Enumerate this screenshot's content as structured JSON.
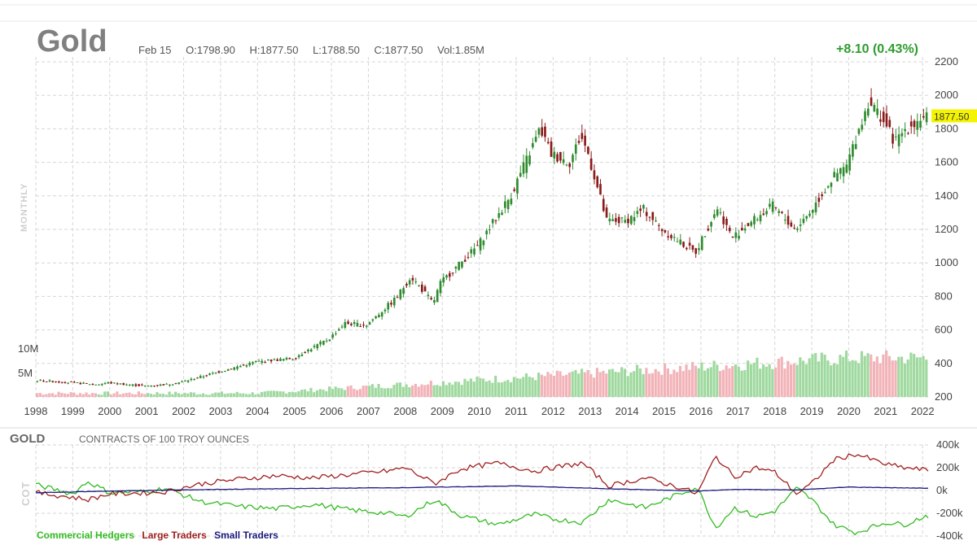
{
  "header": {
    "title": "Gold",
    "date": "Feb 15",
    "open": "O:1798.90",
    "high": "H:1877.50",
    "low": "L:1788.50",
    "close": "C:1877.50",
    "volume": "Vol:1.85M",
    "change": "+8.10 (0.43%)",
    "change_color": "#2e9c2e",
    "last_price_tag": "1877.50",
    "timeframe": "MONTHLY"
  },
  "chart_data": [
    {
      "type": "candlestick",
      "title": "Gold",
      "x_tick_labels": [
        "1998",
        "1999",
        "2000",
        "2001",
        "2002",
        "2003",
        "2004",
        "2005",
        "2006",
        "2007",
        "2008",
        "2009",
        "2010",
        "2011",
        "2012",
        "2013",
        "2014",
        "2015",
        "2016",
        "2017",
        "2018",
        "2019",
        "2020",
        "2021",
        "2022"
      ],
      "y_tick_labels": [
        "200",
        "400",
        "600",
        "800",
        "1000",
        "1200",
        "1400",
        "1600",
        "1800",
        "2000",
        "2200"
      ],
      "ylim": [
        200,
        2200
      ],
      "volume_tick_labels": [
        "5M",
        "10M"
      ],
      "grid": true,
      "up_color": "#2e8b2e",
      "down_color": "#8b1a1a",
      "volume_up_color": "#9fd99f",
      "volume_down_color": "#f2b3b8",
      "close_anchors": [
        {
          "x": 1998.0,
          "y": 300
        },
        {
          "x": 1999.0,
          "y": 285
        },
        {
          "x": 1999.7,
          "y": 275
        },
        {
          "x": 2000.0,
          "y": 285
        },
        {
          "x": 2001.0,
          "y": 265
        },
        {
          "x": 2001.6,
          "y": 275
        },
        {
          "x": 2002.0,
          "y": 290
        },
        {
          "x": 2003.0,
          "y": 350
        },
        {
          "x": 2004.0,
          "y": 410
        },
        {
          "x": 2005.0,
          "y": 430
        },
        {
          "x": 2006.0,
          "y": 550
        },
        {
          "x": 2006.4,
          "y": 640
        },
        {
          "x": 2007.0,
          "y": 630
        },
        {
          "x": 2007.8,
          "y": 790
        },
        {
          "x": 2008.2,
          "y": 920
        },
        {
          "x": 2008.8,
          "y": 760
        },
        {
          "x": 2009.0,
          "y": 880
        },
        {
          "x": 2010.0,
          "y": 1100
        },
        {
          "x": 2010.9,
          "y": 1400
        },
        {
          "x": 2011.7,
          "y": 1800
        },
        {
          "x": 2012.0,
          "y": 1650
        },
        {
          "x": 2012.5,
          "y": 1600
        },
        {
          "x": 2012.8,
          "y": 1760
        },
        {
          "x": 2013.0,
          "y": 1650
        },
        {
          "x": 2013.5,
          "y": 1250
        },
        {
          "x": 2014.0,
          "y": 1250
        },
        {
          "x": 2014.5,
          "y": 1320
        },
        {
          "x": 2015.0,
          "y": 1200
        },
        {
          "x": 2015.9,
          "y": 1060
        },
        {
          "x": 2016.5,
          "y": 1330
        },
        {
          "x": 2016.9,
          "y": 1150
        },
        {
          "x": 2017.5,
          "y": 1260
        },
        {
          "x": 2018.0,
          "y": 1340
        },
        {
          "x": 2018.6,
          "y": 1200
        },
        {
          "x": 2019.0,
          "y": 1300
        },
        {
          "x": 2019.6,
          "y": 1500
        },
        {
          "x": 2020.0,
          "y": 1580
        },
        {
          "x": 2020.6,
          "y": 1970
        },
        {
          "x": 2021.0,
          "y": 1850
        },
        {
          "x": 2021.3,
          "y": 1720
        },
        {
          "x": 2021.6,
          "y": 1800
        },
        {
          "x": 2022.1,
          "y": 1877.5
        }
      ]
    },
    {
      "type": "line",
      "title": "GOLD",
      "subtitle": "CONTRACTS OF 100 TROY OUNCES",
      "side_label": "COT",
      "y_tick_labels": [
        "400k",
        "200k",
        "0k",
        "-200k",
        "-400k"
      ],
      "ylim": [
        -400000,
        400000
      ],
      "grid": true,
      "series": [
        {
          "name": "Commercial Hedgers",
          "color": "#33bb22",
          "points": [
            {
              "x": 1998.0,
              "y": 50000
            },
            {
              "x": 1999.0,
              "y": -30000
            },
            {
              "x": 1999.4,
              "y": 80000
            },
            {
              "x": 2000.0,
              "y": -20000
            },
            {
              "x": 2001.0,
              "y": -10000
            },
            {
              "x": 2001.5,
              "y": 20000
            },
            {
              "x": 2002.5,
              "y": -100000
            },
            {
              "x": 2003.5,
              "y": -140000
            },
            {
              "x": 2004.5,
              "y": -160000
            },
            {
              "x": 2005.5,
              "y": -120000
            },
            {
              "x": 2006.5,
              "y": -170000
            },
            {
              "x": 2007.5,
              "y": -200000
            },
            {
              "x": 2008.0,
              "y": -230000
            },
            {
              "x": 2008.8,
              "y": -80000
            },
            {
              "x": 2009.5,
              "y": -220000
            },
            {
              "x": 2010.5,
              "y": -300000
            },
            {
              "x": 2011.5,
              "y": -210000
            },
            {
              "x": 2012.0,
              "y": -250000
            },
            {
              "x": 2012.8,
              "y": -280000
            },
            {
              "x": 2013.5,
              "y": -80000
            },
            {
              "x": 2014.5,
              "y": -150000
            },
            {
              "x": 2015.5,
              "y": -20000
            },
            {
              "x": 2015.9,
              "y": 30000
            },
            {
              "x": 2016.4,
              "y": -330000
            },
            {
              "x": 2016.9,
              "y": -150000
            },
            {
              "x": 2017.5,
              "y": -230000
            },
            {
              "x": 2018.0,
              "y": -180000
            },
            {
              "x": 2018.6,
              "y": 20000
            },
            {
              "x": 2019.0,
              "y": -80000
            },
            {
              "x": 2019.6,
              "y": -300000
            },
            {
              "x": 2020.2,
              "y": -370000
            },
            {
              "x": 2021.0,
              "y": -280000
            },
            {
              "x": 2021.5,
              "y": -300000
            },
            {
              "x": 2022.1,
              "y": -220000
            }
          ]
        },
        {
          "name": "Large Traders",
          "color": "#a02020",
          "points": [
            {
              "x": 1998.0,
              "y": -20000
            },
            {
              "x": 1999.0,
              "y": -60000
            },
            {
              "x": 1999.4,
              "y": -80000
            },
            {
              "x": 2000.0,
              "y": -30000
            },
            {
              "x": 2001.0,
              "y": -20000
            },
            {
              "x": 2001.5,
              "y": -10000
            },
            {
              "x": 2002.5,
              "y": 60000
            },
            {
              "x": 2003.5,
              "y": 100000
            },
            {
              "x": 2004.5,
              "y": 130000
            },
            {
              "x": 2005.5,
              "y": 110000
            },
            {
              "x": 2006.5,
              "y": 140000
            },
            {
              "x": 2007.5,
              "y": 170000
            },
            {
              "x": 2008.0,
              "y": 200000
            },
            {
              "x": 2008.8,
              "y": 60000
            },
            {
              "x": 2009.5,
              "y": 190000
            },
            {
              "x": 2010.5,
              "y": 240000
            },
            {
              "x": 2011.5,
              "y": 170000
            },
            {
              "x": 2012.0,
              "y": 200000
            },
            {
              "x": 2012.8,
              "y": 240000
            },
            {
              "x": 2013.5,
              "y": 40000
            },
            {
              "x": 2014.5,
              "y": 110000
            },
            {
              "x": 2015.5,
              "y": 20000
            },
            {
              "x": 2015.9,
              "y": -30000
            },
            {
              "x": 2016.4,
              "y": 300000
            },
            {
              "x": 2016.9,
              "y": 120000
            },
            {
              "x": 2017.5,
              "y": 200000
            },
            {
              "x": 2018.0,
              "y": 160000
            },
            {
              "x": 2018.6,
              "y": -30000
            },
            {
              "x": 2019.0,
              "y": 60000
            },
            {
              "x": 2019.6,
              "y": 270000
            },
            {
              "x": 2020.2,
              "y": 320000
            },
            {
              "x": 2021.0,
              "y": 230000
            },
            {
              "x": 2021.5,
              "y": 200000
            },
            {
              "x": 2022.1,
              "y": 180000
            }
          ]
        },
        {
          "name": "Small Traders",
          "color": "#1a1a80",
          "points": [
            {
              "x": 1998.0,
              "y": -20000
            },
            {
              "x": 2000.0,
              "y": -5000
            },
            {
              "x": 2003.0,
              "y": 10000
            },
            {
              "x": 2006.0,
              "y": 20000
            },
            {
              "x": 2008.0,
              "y": 25000
            },
            {
              "x": 2011.0,
              "y": 40000
            },
            {
              "x": 2013.0,
              "y": 20000
            },
            {
              "x": 2015.9,
              "y": -5000
            },
            {
              "x": 2017.0,
              "y": 10000
            },
            {
              "x": 2018.6,
              "y": 5000
            },
            {
              "x": 2020.0,
              "y": 30000
            },
            {
              "x": 2022.1,
              "y": 20000
            }
          ]
        }
      ]
    }
  ]
}
